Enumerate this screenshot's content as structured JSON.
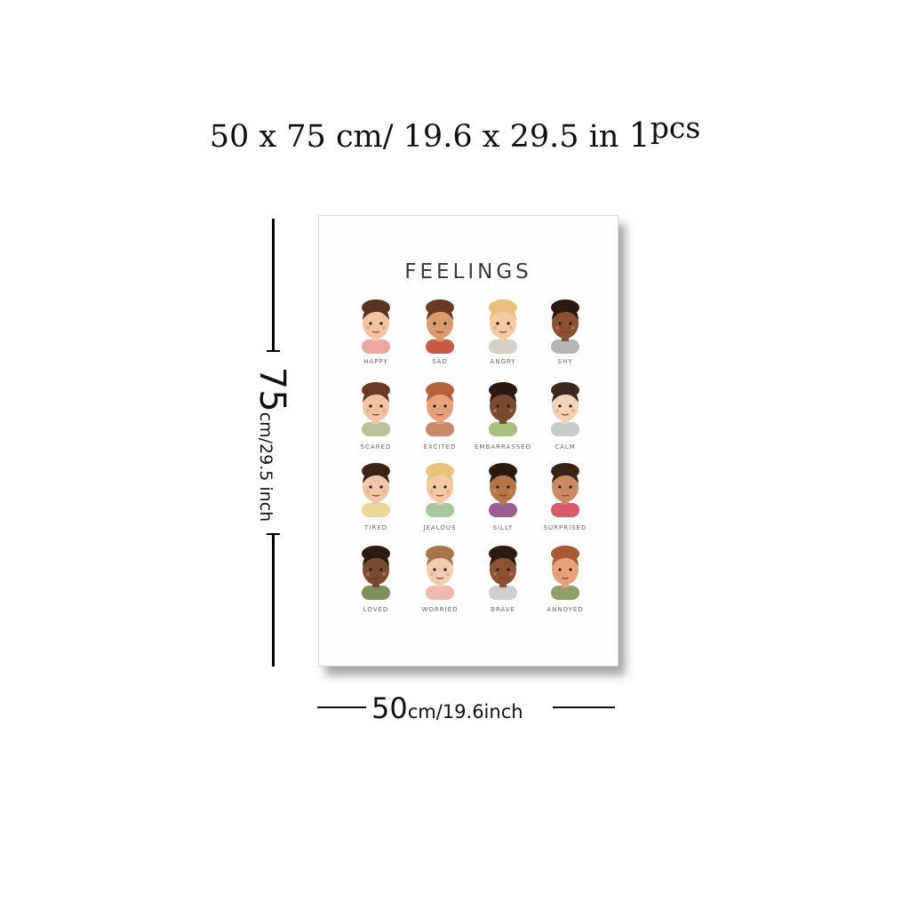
{
  "header": {
    "width_cm": "50",
    "x": " x ",
    "height_cm": "75",
    "cm_sep": " cm/ ",
    "width_in": "19.6",
    "x2": "  x  ",
    "height_in": "29.5",
    "in_label": " in ",
    "qty": "1",
    "qty_unit": "pcs"
  },
  "dims": {
    "height_big": "75",
    "height_small": "cm/29.5 inch",
    "width_big": "50",
    "width_small": "cm/19.6inch"
  },
  "poster": {
    "title": "FEELINGS",
    "faces": [
      {
        "label": "HAPPY",
        "skin": "#f2c3a0",
        "hair": "#5a3422",
        "shirt": "#e9a9a1"
      },
      {
        "label": "SAD",
        "skin": "#d99a6c",
        "hair": "#6a3b22",
        "shirt": "#c65a45"
      },
      {
        "label": "ANGRY",
        "skin": "#f4c9a4",
        "hair": "#e8c27a",
        "shirt": "#d8d0c8"
      },
      {
        "label": "SHY",
        "skin": "#8a5233",
        "hair": "#2a1a12",
        "shirt": "#b5b5b5"
      },
      {
        "label": "SCARED",
        "skin": "#f2c3a0",
        "hair": "#6a3b22",
        "shirt": "#b9c39a"
      },
      {
        "label": "EXCITED",
        "skin": "#e6a07a",
        "hair": "#b4603a",
        "shirt": "#c98a6a"
      },
      {
        "label": "EMBARRASSED",
        "skin": "#7a4a2e",
        "hair": "#2a1a12",
        "shirt": "#a9c07d"
      },
      {
        "label": "CALM",
        "skin": "#f4d2b4",
        "hair": "#3a2a22",
        "shirt": "#c8ccc8"
      },
      {
        "label": "TIRED",
        "skin": "#f1c7a6",
        "hair": "#3a2418",
        "shirt": "#e9d89a"
      },
      {
        "label": "JEALOUS",
        "skin": "#f4c9a4",
        "hair": "#e8c27a",
        "shirt": "#aac7a0"
      },
      {
        "label": "SILLY",
        "skin": "#b47548",
        "hair": "#2a1a12",
        "shirt": "#9c5e8c"
      },
      {
        "label": "SURPRISED",
        "skin": "#c98a62",
        "hair": "#3a2418",
        "shirt": "#d65a6a"
      },
      {
        "label": "LOVED",
        "skin": "#7a4a2e",
        "hair": "#2a1a12",
        "shirt": "#7f8f5a"
      },
      {
        "label": "WORRIED",
        "skin": "#f4cdb0",
        "hair": "#a8744a",
        "shirt": "#f0b9b0"
      },
      {
        "label": "BRAVE",
        "skin": "#8a5233",
        "hair": "#2a1a12",
        "shirt": "#cfcfcf"
      },
      {
        "label": "ANNOYED",
        "skin": "#e6a07a",
        "hair": "#a85a35",
        "shirt": "#8fa06a"
      }
    ]
  }
}
